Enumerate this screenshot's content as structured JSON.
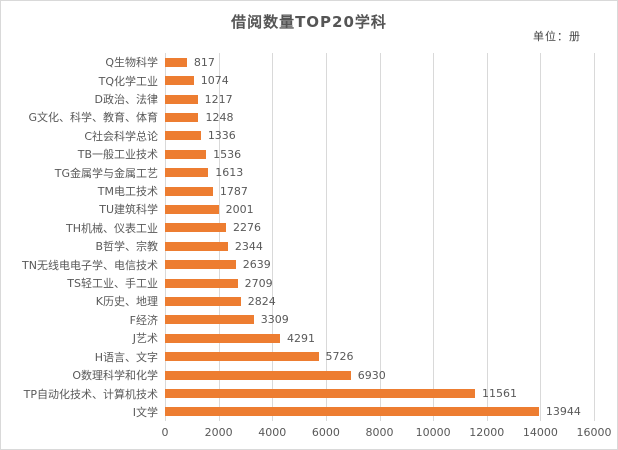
{
  "unit_label": "单位：册",
  "colors": {
    "bar": "#ED7D31",
    "grid": "#D9D9D9",
    "text": "#595959",
    "border": "#D9D9D9",
    "background": "#FFFFFF"
  },
  "chart_data": {
    "type": "bar",
    "orientation": "horizontal",
    "title": "借阅数量TOP20学科",
    "subtitle": "单位：册",
    "categories": [
      "Q生物科学",
      "TQ化学工业",
      "D政治、法律",
      "G文化、科学、教育、体育",
      "C社会科学总论",
      "TB一般工业技术",
      "TG金属学与金属工艺",
      "TM电工技术",
      "TU建筑科学",
      "TH机械、仪表工业",
      "B哲学、宗教",
      "TN无线电电子学、电信技术",
      "TS轻工业、手工业",
      "K历史、地理",
      "F经济",
      "J艺术",
      "H语言、文字",
      "O数理科学和化学",
      "TP自动化技术、计算机技术",
      "I文学"
    ],
    "values": [
      817,
      1074,
      1217,
      1248,
      1336,
      1536,
      1613,
      1787,
      2001,
      2276,
      2344,
      2639,
      2709,
      2824,
      3309,
      4291,
      5726,
      6930,
      11561,
      13944
    ],
    "xlabel": "",
    "ylabel": "",
    "xlim": [
      0,
      16000
    ],
    "xticks": [
      0,
      2000,
      4000,
      6000,
      8000,
      10000,
      12000,
      14000,
      16000
    ],
    "grid": "vertical-major",
    "legend": "none",
    "data_labels": true,
    "bar_color": "#ED7D31"
  }
}
